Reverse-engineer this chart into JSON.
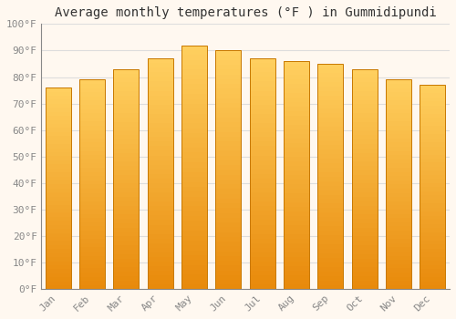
{
  "title": "Average monthly temperatures (°F ) in Gummidipundi",
  "months": [
    "Jan",
    "Feb",
    "Mar",
    "Apr",
    "May",
    "Jun",
    "Jul",
    "Aug",
    "Sep",
    "Oct",
    "Nov",
    "Dec"
  ],
  "values": [
    76,
    79,
    83,
    87,
    92,
    90,
    87,
    86,
    85,
    83,
    79,
    77
  ],
  "bar_color_bottom": "#E8890A",
  "bar_color_top": "#FFD060",
  "background_color": "#FFF8F0",
  "grid_color": "#DDDDDD",
  "ylim": [
    0,
    100
  ],
  "yticks": [
    0,
    10,
    20,
    30,
    40,
    50,
    60,
    70,
    80,
    90,
    100
  ],
  "ytick_labels": [
    "0°F",
    "10°F",
    "20°F",
    "30°F",
    "40°F",
    "50°F",
    "60°F",
    "70°F",
    "80°F",
    "90°F",
    "100°F"
  ],
  "title_fontsize": 10,
  "tick_fontsize": 8,
  "bar_edge_color": "#C87800",
  "font_family": "monospace",
  "bar_width": 0.75,
  "tick_color": "#888888"
}
